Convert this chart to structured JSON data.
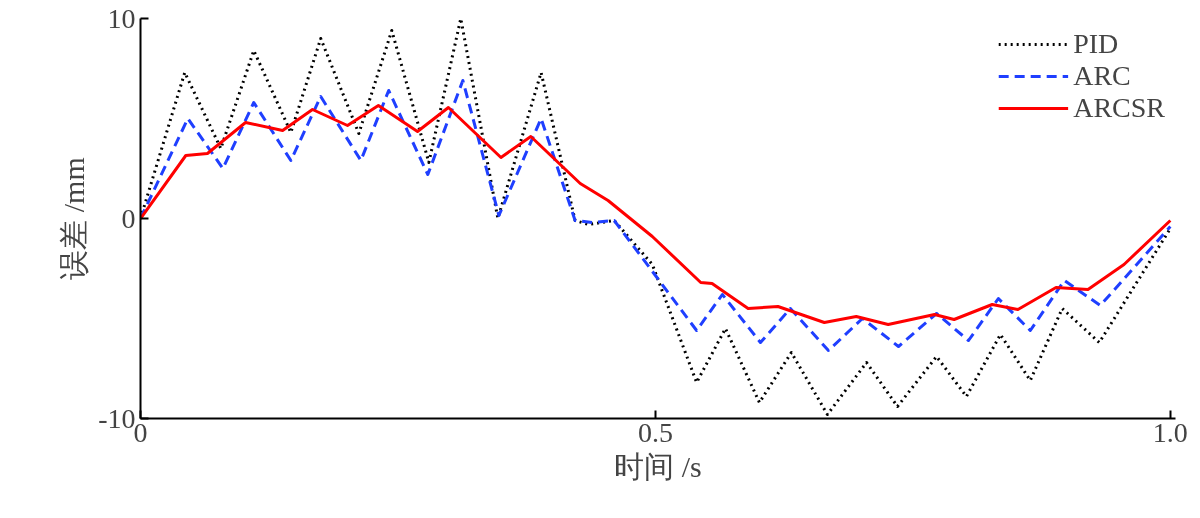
{
  "chart_data": {
    "type": "line",
    "xlabel": "时间 /s",
    "ylabel": "误差 /mm",
    "xlim": [
      0,
      1.005
    ],
    "ylim": [
      -10,
      10
    ],
    "xticks": [
      0,
      0.5,
      {
        "value": 1.0,
        "label": "1.0"
      }
    ],
    "yticks": [
      -10,
      0,
      10
    ],
    "grid": false,
    "legend": "top right",
    "series": [
      {
        "name": "PID",
        "color": "#000000",
        "line_style": "dotted",
        "x": [
          0,
          0.043,
          0.078,
          0.11,
          0.146,
          0.175,
          0.212,
          0.244,
          0.28,
          0.311,
          0.347,
          0.389,
          0.422,
          0.435,
          0.46,
          0.497,
          0.54,
          0.568,
          0.601,
          0.632,
          0.667,
          0.705,
          0.735,
          0.773,
          0.802,
          0.835,
          0.864,
          0.895,
          0.931,
          1.0
        ],
        "values": [
          0,
          7.3,
          3.5,
          8.4,
          4.3,
          9.0,
          4.25,
          9.4,
          2.8,
          10.0,
          0,
          7.3,
          -0.1,
          -0.3,
          -0.1,
          -2.3,
          -8.2,
          -5.5,
          -9.2,
          -6.7,
          -9.8,
          -7.2,
          -9.4,
          -6.9,
          -8.9,
          -5.8,
          -8.1,
          -4.5,
          -6.2,
          -0.5
        ]
      },
      {
        "name": "ARC",
        "color": "#1f3fff",
        "line_style": "dashed",
        "x": [
          0,
          0.046,
          0.08,
          0.11,
          0.146,
          0.175,
          0.214,
          0.241,
          0.279,
          0.313,
          0.348,
          0.389,
          0.422,
          0.439,
          0.46,
          0.54,
          0.565,
          0.602,
          0.631,
          0.668,
          0.701,
          0.736,
          0.773,
          0.804,
          0.833,
          0.864,
          0.897,
          0.932,
          1.0
        ],
        "values": [
          0,
          5.0,
          2.5,
          5.8,
          2.9,
          6.1,
          2.9,
          6.4,
          2.2,
          6.9,
          0.15,
          5.0,
          -0.1,
          -0.2,
          -0.1,
          -5.6,
          -3.8,
          -6.2,
          -4.5,
          -6.6,
          -5.0,
          -6.4,
          -4.75,
          -6.1,
          -4.0,
          -5.6,
          -3.1,
          -4.35,
          -0.4
        ]
      },
      {
        "name": "ARCSR",
        "color": "#ff0000",
        "line_style": "solid",
        "x": [
          0,
          0.044,
          0.065,
          0.102,
          0.138,
          0.167,
          0.201,
          0.231,
          0.269,
          0.299,
          0.35,
          0.379,
          0.427,
          0.454,
          0.497,
          0.544,
          0.555,
          0.59,
          0.619,
          0.664,
          0.695,
          0.726,
          0.771,
          0.79,
          0.827,
          0.852,
          0.889,
          0.92,
          0.955,
          1.0
        ],
        "values": [
          0,
          3.15,
          3.25,
          4.8,
          4.4,
          5.45,
          4.65,
          5.65,
          4.35,
          5.55,
          3.05,
          4.1,
          1.75,
          0.9,
          -0.9,
          -3.2,
          -3.25,
          -4.5,
          -4.4,
          -5.2,
          -4.9,
          -5.3,
          -4.8,
          -5.05,
          -4.3,
          -4.55,
          -3.45,
          -3.55,
          -2.3,
          -0.1
        ]
      }
    ]
  }
}
